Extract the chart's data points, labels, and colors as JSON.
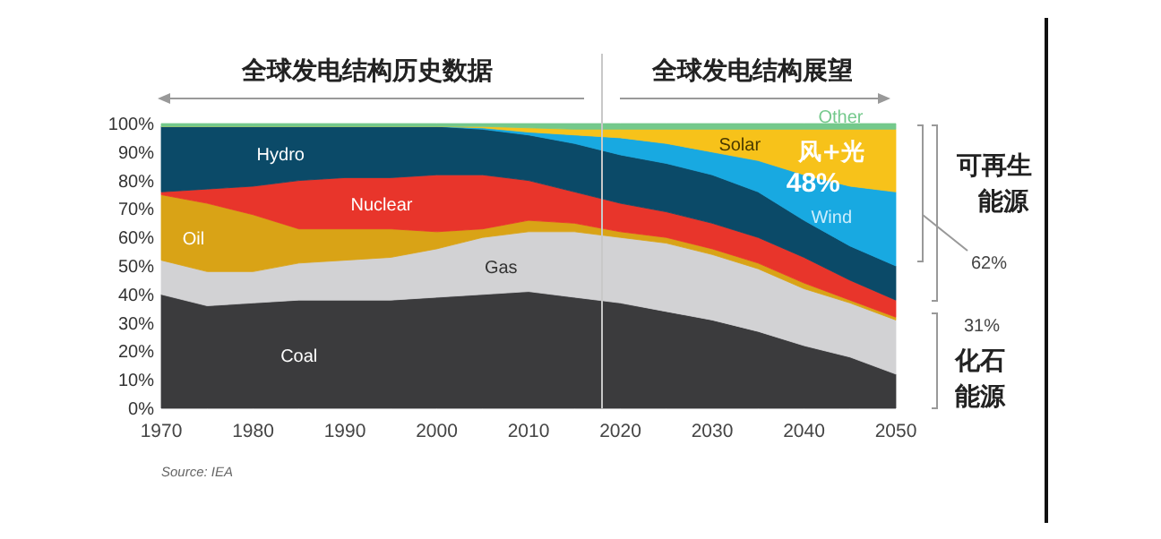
{
  "chart_data": {
    "type": "area",
    "stacked": true,
    "x": [
      1970,
      1975,
      1980,
      1985,
      1990,
      1995,
      2000,
      2005,
      2010,
      2015,
      2020,
      2025,
      2030,
      2035,
      2040,
      2045,
      2050
    ],
    "series": [
      {
        "name": "Coal",
        "color": "#3b3b3d",
        "values": [
          40,
          36,
          37,
          38,
          38,
          38,
          39,
          40,
          41,
          39,
          37,
          34,
          31,
          27,
          22,
          18,
          12
        ]
      },
      {
        "name": "Gas",
        "color": "#d2d2d4",
        "values": [
          12,
          12,
          11,
          13,
          14,
          15,
          17,
          20,
          21,
          23,
          23,
          24,
          23,
          22,
          20,
          19,
          19
        ]
      },
      {
        "name": "Oil",
        "color": "#d9a316",
        "values": [
          23,
          24,
          20,
          12,
          11,
          10,
          6,
          3,
          4,
          3,
          2,
          2,
          2,
          2,
          2,
          1,
          1
        ]
      },
      {
        "name": "Nuclear",
        "color": "#e8352b",
        "values": [
          1,
          5,
          10,
          17,
          18,
          18,
          20,
          19,
          14,
          11,
          10,
          9,
          9,
          9,
          9,
          7,
          6
        ]
      },
      {
        "name": "Hydro",
        "color": "#0b4a68",
        "values": [
          23,
          22,
          21,
          19,
          18,
          18,
          17,
          16,
          16,
          17,
          17,
          17,
          17,
          16,
          13,
          12,
          12
        ]
      },
      {
        "name": "Wind",
        "color": "#18a9e1",
        "values": [
          0,
          0,
          0,
          0,
          0,
          0,
          0,
          0.5,
          1,
          3,
          6,
          7,
          8,
          11,
          16,
          21,
          26
        ]
      },
      {
        "name": "Solar",
        "color": "#f7c21a",
        "values": [
          0,
          0,
          0,
          0,
          0,
          0,
          0,
          0.5,
          1.5,
          2,
          3,
          5,
          8,
          11,
          16,
          20,
          22
        ]
      },
      {
        "name": "Other",
        "color": "#74c98c",
        "values": [
          1,
          1,
          1,
          1,
          1,
          1,
          1,
          1,
          1.5,
          2,
          2,
          2,
          2,
          2,
          2,
          2,
          2
        ]
      }
    ],
    "xlim": [
      1970,
      2050
    ],
    "ylim": [
      0,
      100
    ],
    "xticks": [
      1970,
      1980,
      1990,
      2000,
      2010,
      2020,
      2030,
      2040,
      2050
    ],
    "yticks": [
      {
        "value": 0,
        "label": "0%"
      },
      {
        "value": 10,
        "label": "10%"
      },
      {
        "value": 20,
        "label": "20%"
      },
      {
        "value": 30,
        "label": "30%"
      },
      {
        "value": 40,
        "label": "40%"
      },
      {
        "value": 50,
        "label": "50%"
      },
      {
        "value": 60,
        "label": "60%"
      },
      {
        "value": 70,
        "label": "70%"
      },
      {
        "value": 80,
        "label": "80%"
      },
      {
        "value": 90,
        "label": "90%"
      },
      {
        "value": 100,
        "label": "100%"
      }
    ],
    "ref_lines": [
      {
        "axis": "x",
        "value": 2018,
        "color": "#c8c8c8"
      }
    ],
    "grid": false,
    "annotations": [
      "全球发电结构历史数据",
      "全球发电结构展望",
      "风+光",
      "48%",
      "可再生能源",
      "62%",
      "31%",
      "化石能源",
      "Source: IEA"
    ]
  }
}
